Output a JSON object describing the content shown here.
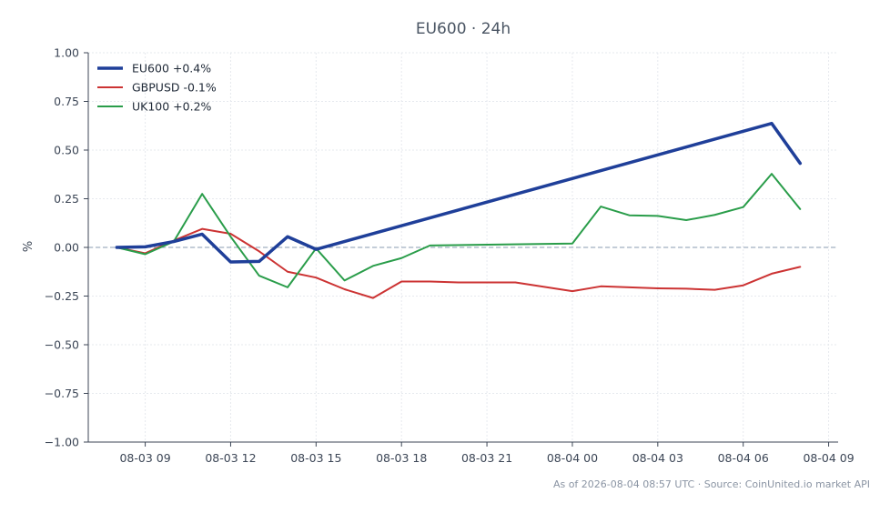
{
  "footer": "As of 2026-08-04 08:57 UTC · Source: CoinUnited.io market API",
  "chart_data": {
    "type": "line",
    "title": "EU600 · 24h",
    "ylabel": "%",
    "xlabel": "",
    "ylim": [
      -1.0,
      1.0
    ],
    "yticks": [
      1.0,
      0.75,
      0.5,
      0.25,
      0.0,
      -0.25,
      -0.5,
      -0.75,
      -1.0
    ],
    "ytick_labels": [
      "1.00",
      "0.75",
      "0.50",
      "0.25",
      "0.00",
      "−0.25",
      "−0.50",
      "−0.75",
      "−1.00"
    ],
    "xlim": [
      "2026-08-03 07:00",
      "2026-08-04 09:20"
    ],
    "xticks": [
      "2026-08-03 09:00",
      "2026-08-03 12:00",
      "2026-08-03 15:00",
      "2026-08-03 18:00",
      "2026-08-03 21:00",
      "2026-08-04 00:00",
      "2026-08-04 03:00",
      "2026-08-04 06:00",
      "2026-08-04 09:00"
    ],
    "xtick_labels": [
      "08-03 09",
      "08-03 12",
      "08-03 15",
      "08-03 18",
      "08-03 21",
      "08-04 00",
      "08-04 03",
      "08-04 06",
      "08-04 09"
    ],
    "grid": true,
    "zero_line": true,
    "legend_position": "top-left",
    "series": [
      {
        "name": "EU600 +0.4%",
        "color": "#1f3f99",
        "width": 3.5,
        "x": [
          "2026-08-03 08:00",
          "2026-08-03 09:00",
          "2026-08-03 10:00",
          "2026-08-03 11:00",
          "2026-08-03 12:00",
          "2026-08-03 13:00",
          "2026-08-03 14:00",
          "2026-08-03 15:00",
          "2026-08-04 07:00",
          "2026-08-04 08:00"
        ],
        "y": [
          0.0,
          0.003,
          0.03,
          0.068,
          -0.075,
          -0.072,
          0.055,
          -0.01,
          0.637,
          0.432
        ]
      },
      {
        "name": "GBPUSD -0.1%",
        "color": "#cc3333",
        "width": 2,
        "x": [
          "2026-08-03 08:00",
          "2026-08-03 09:00",
          "2026-08-03 10:00",
          "2026-08-03 11:00",
          "2026-08-03 12:00",
          "2026-08-03 13:00",
          "2026-08-03 14:00",
          "2026-08-03 15:00",
          "2026-08-03 16:00",
          "2026-08-03 17:00",
          "2026-08-03 18:00",
          "2026-08-03 19:00",
          "2026-08-03 20:00",
          "2026-08-03 21:00",
          "2026-08-03 22:00",
          "2026-08-04 00:00",
          "2026-08-04 01:00",
          "2026-08-04 02:00",
          "2026-08-04 03:00",
          "2026-08-04 04:00",
          "2026-08-04 05:00",
          "2026-08-04 06:00",
          "2026-08-04 07:00",
          "2026-08-04 08:00"
        ],
        "y": [
          0.0,
          -0.03,
          0.035,
          0.095,
          0.07,
          -0.02,
          -0.125,
          -0.155,
          -0.215,
          -0.26,
          -0.175,
          -0.175,
          -0.18,
          -0.18,
          -0.18,
          -0.225,
          -0.2,
          -0.205,
          -0.21,
          -0.212,
          -0.218,
          -0.195,
          -0.135,
          -0.1
        ]
      },
      {
        "name": "UK100 +0.2%",
        "color": "#2a9d4a",
        "width": 2,
        "x": [
          "2026-08-03 08:00",
          "2026-08-03 09:00",
          "2026-08-03 10:00",
          "2026-08-03 11:00",
          "2026-08-03 12:00",
          "2026-08-03 13:00",
          "2026-08-03 14:00",
          "2026-08-03 15:00",
          "2026-08-03 16:00",
          "2026-08-03 17:00",
          "2026-08-03 18:00",
          "2026-08-03 19:00",
          "2026-08-04 00:00",
          "2026-08-04 01:00",
          "2026-08-04 02:00",
          "2026-08-04 03:00",
          "2026-08-04 04:00",
          "2026-08-04 05:00",
          "2026-08-04 06:00",
          "2026-08-04 07:00",
          "2026-08-04 08:00"
        ],
        "y": [
          0.0,
          -0.035,
          0.03,
          0.275,
          0.055,
          -0.145,
          -0.205,
          -0.005,
          -0.17,
          -0.095,
          -0.055,
          0.01,
          0.02,
          0.21,
          0.165,
          0.162,
          0.14,
          0.167,
          0.207,
          0.378,
          0.197
        ]
      }
    ]
  }
}
